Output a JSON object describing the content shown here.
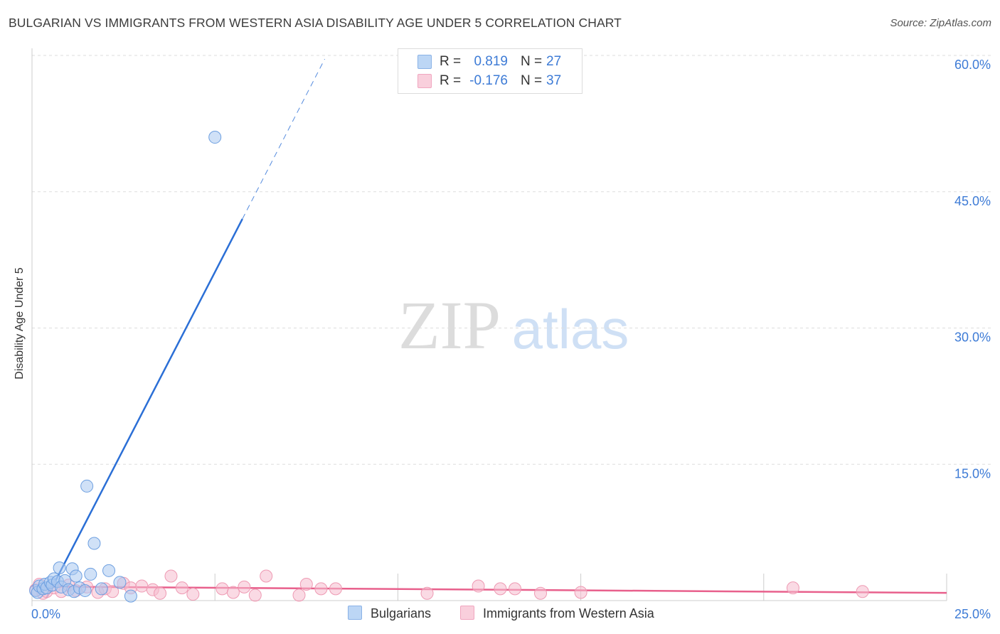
{
  "title": "BULGARIAN VS IMMIGRANTS FROM WESTERN ASIA DISABILITY AGE UNDER 5 CORRELATION CHART",
  "source": "Source: ZipAtlas.com",
  "watermark": {
    "zip": "ZIP",
    "atlas": "atlas"
  },
  "legend": {
    "r_label": "R =",
    "n_label": "N =",
    "rows": [
      {
        "r": "0.819",
        "n": "27"
      },
      {
        "r": "-0.176",
        "n": "37"
      }
    ]
  },
  "bottom_legend": [
    "Bulgarians",
    "Immigrants from Western Asia"
  ],
  "colors": {
    "blue_fill": "#a9c8f0",
    "blue_stroke": "#6d9fe0",
    "blue_line": "#2b6fd6",
    "pink_fill": "#f6bccd",
    "pink_stroke": "#ee9ab3",
    "pink_line": "#e8608c",
    "tick_text": "#3d7bd6",
    "grid": "#dddddd"
  },
  "chart_data": {
    "type": "scatter",
    "title": "BULGARIAN VS IMMIGRANTS FROM WESTERN ASIA DISABILITY AGE UNDER 5 CORRELATION CHART",
    "xlabel": "",
    "ylabel": "Disability Age Under 5",
    "xlim": [
      0,
      25
    ],
    "ylim": [
      0,
      60
    ],
    "x_tick_labels": [
      "0.0%",
      "25.0%"
    ],
    "y_ticks": [
      15,
      30,
      45,
      60
    ],
    "y_tick_labels": [
      "15.0%",
      "30.0%",
      "45.0%",
      "60.0%"
    ],
    "grid": true,
    "legend_position": "top-center",
    "series": [
      {
        "name": "Bulgarians",
        "color": "blue",
        "points": [
          [
            0.1,
            1.1
          ],
          [
            0.15,
            0.9
          ],
          [
            0.2,
            1.6
          ],
          [
            0.3,
            1.3
          ],
          [
            0.35,
            1.8
          ],
          [
            0.4,
            1.4
          ],
          [
            0.5,
            2.0
          ],
          [
            0.55,
            1.7
          ],
          [
            0.6,
            2.4
          ],
          [
            0.7,
            2.1
          ],
          [
            0.75,
            3.6
          ],
          [
            0.8,
            1.5
          ],
          [
            0.9,
            2.2
          ],
          [
            1.0,
            1.2
          ],
          [
            1.1,
            3.5
          ],
          [
            1.15,
            1.0
          ],
          [
            1.2,
            2.7
          ],
          [
            1.3,
            1.4
          ],
          [
            1.45,
            1.1
          ],
          [
            1.5,
            12.6
          ],
          [
            1.6,
            2.9
          ],
          [
            1.7,
            6.3
          ],
          [
            1.9,
            1.3
          ],
          [
            2.1,
            3.3
          ],
          [
            2.4,
            2.0
          ],
          [
            2.7,
            0.5
          ],
          [
            5.0,
            51.0
          ]
        ],
        "trend": {
          "x_start": 0.4,
          "y_start": 0.3,
          "x_solid_end": 5.75,
          "y_solid_end": 42.0,
          "x_dashed_end": 8.0,
          "y_dashed_end": 59.6
        }
      },
      {
        "name": "Immigrants from Western Asia",
        "color": "pink",
        "points": [
          [
            0.1,
            1.2
          ],
          [
            0.2,
            1.8
          ],
          [
            0.3,
            0.8
          ],
          [
            0.4,
            1.0
          ],
          [
            0.6,
            1.4
          ],
          [
            0.8,
            1.0
          ],
          [
            1.0,
            1.7
          ],
          [
            1.2,
            1.1
          ],
          [
            1.5,
            1.5
          ],
          [
            1.8,
            0.9
          ],
          [
            2.0,
            1.3
          ],
          [
            2.2,
            1.0
          ],
          [
            2.5,
            1.9
          ],
          [
            2.7,
            1.4
          ],
          [
            3.0,
            1.6
          ],
          [
            3.3,
            1.2
          ],
          [
            3.5,
            0.8
          ],
          [
            3.8,
            2.7
          ],
          [
            4.1,
            1.4
          ],
          [
            4.4,
            0.7
          ],
          [
            5.2,
            1.3
          ],
          [
            5.5,
            0.9
          ],
          [
            5.8,
            1.5
          ],
          [
            6.1,
            0.6
          ],
          [
            6.4,
            2.7
          ],
          [
            7.3,
            0.6
          ],
          [
            7.5,
            1.8
          ],
          [
            7.9,
            1.3
          ],
          [
            8.3,
            1.3
          ],
          [
            10.8,
            0.8
          ],
          [
            12.2,
            1.6
          ],
          [
            12.8,
            1.3
          ],
          [
            13.2,
            1.3
          ],
          [
            13.9,
            0.8
          ],
          [
            15.0,
            0.9
          ],
          [
            20.8,
            1.4
          ],
          [
            22.7,
            1.0
          ]
        ],
        "trend": {
          "x_start": 0,
          "y_start": 1.55,
          "x_end": 25,
          "y_end": 0.85
        }
      }
    ]
  }
}
